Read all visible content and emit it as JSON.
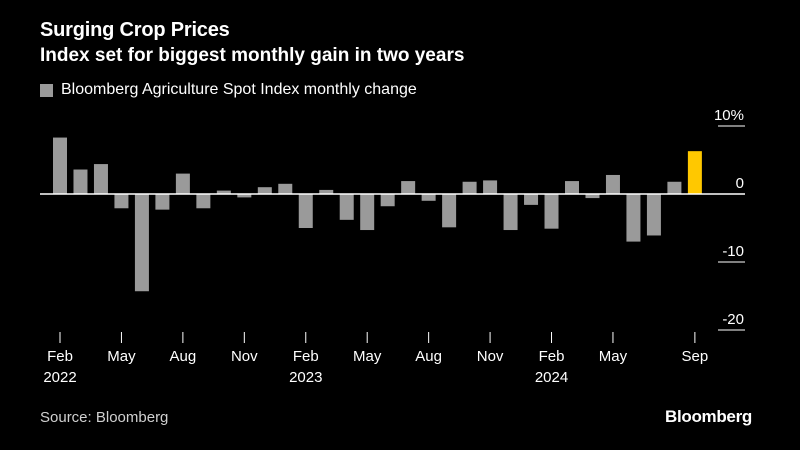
{
  "header": {
    "title": "Surging Crop Prices",
    "subtitle": "Index set for biggest monthly gain in two years"
  },
  "legend": {
    "label": "Bloomberg Agriculture Spot Index monthly change"
  },
  "footer": {
    "source": "Source: Bloomberg",
    "brand": "Bloomberg"
  },
  "colors": {
    "background": "#000000",
    "bar": "#9a9a9a",
    "highlight": "#ffc800",
    "axis": "#ffffff",
    "text": "#ffffff"
  },
  "chart_data": {
    "type": "bar",
    "title": "Surging Crop Prices",
    "subtitle": "Index set for biggest monthly gain in two years",
    "series_name": "Bloomberg Agriculture Spot Index monthly change",
    "unit": "%",
    "categories": [
      "2022-02",
      "2022-03",
      "2022-04",
      "2022-05",
      "2022-06",
      "2022-07",
      "2022-08",
      "2022-09",
      "2022-10",
      "2022-11",
      "2022-12",
      "2023-01",
      "2023-02",
      "2023-03",
      "2023-04",
      "2023-05",
      "2023-06",
      "2023-07",
      "2023-08",
      "2023-09",
      "2023-10",
      "2023-11",
      "2023-12",
      "2024-01",
      "2024-02",
      "2024-03",
      "2024-04",
      "2024-05",
      "2024-06",
      "2024-07",
      "2024-08",
      "2024-09"
    ],
    "values": [
      8.3,
      3.6,
      4.4,
      -2.1,
      -14.3,
      -2.3,
      3.0,
      -2.1,
      0.5,
      -0.5,
      1.0,
      1.5,
      -5.0,
      0.6,
      -3.8,
      -5.3,
      -1.8,
      1.9,
      -1.0,
      -4.9,
      1.8,
      2.0,
      -5.3,
      -1.6,
      -5.1,
      1.9,
      -0.6,
      2.8,
      -7.0,
      -6.1,
      1.8,
      6.3
    ],
    "highlight_index": 31,
    "xlabel": "",
    "ylabel": "",
    "ylim": [
      -20,
      10
    ],
    "yticks": [
      {
        "value": 10,
        "label": "10%"
      },
      {
        "value": 0,
        "label": "0"
      },
      {
        "value": -10,
        "label": "-10"
      },
      {
        "value": -20,
        "label": "-20"
      }
    ],
    "xticks": [
      {
        "index": 0,
        "label": "Feb",
        "year": "2022"
      },
      {
        "index": 3,
        "label": "May",
        "year": ""
      },
      {
        "index": 6,
        "label": "Aug",
        "year": ""
      },
      {
        "index": 9,
        "label": "Nov",
        "year": ""
      },
      {
        "index": 12,
        "label": "Feb",
        "year": "2023"
      },
      {
        "index": 15,
        "label": "May",
        "year": ""
      },
      {
        "index": 18,
        "label": "Aug",
        "year": ""
      },
      {
        "index": 21,
        "label": "Nov",
        "year": ""
      },
      {
        "index": 24,
        "label": "Feb",
        "year": "2024"
      },
      {
        "index": 27,
        "label": "May",
        "year": ""
      },
      {
        "index": 31,
        "label": "Sep",
        "year": ""
      }
    ],
    "grid": false,
    "legend_position": "top-left"
  }
}
